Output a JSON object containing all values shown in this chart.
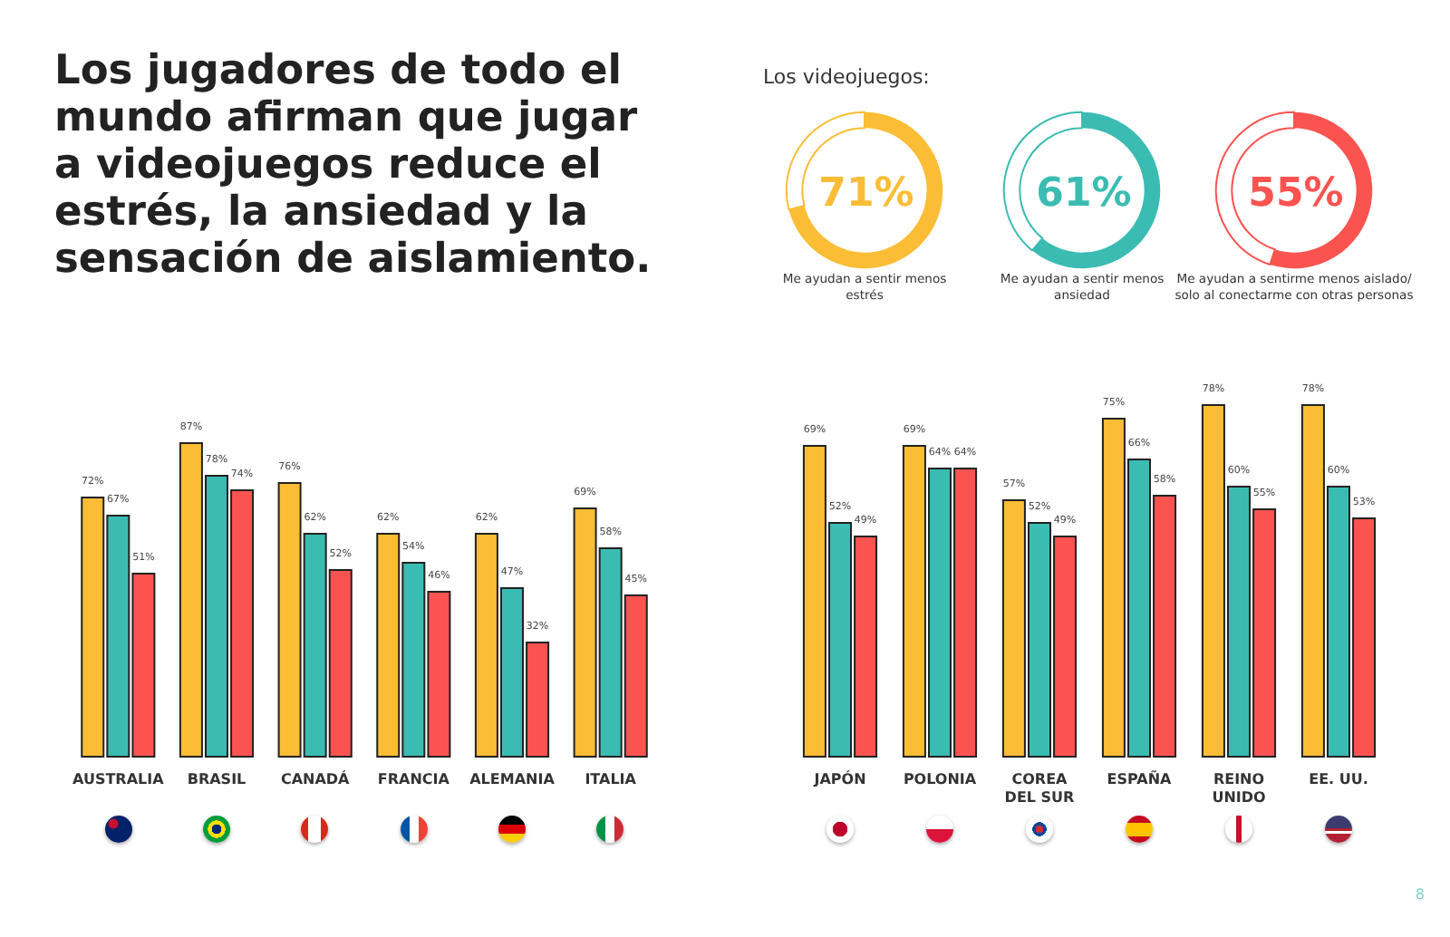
{
  "chart_data": [
    {
      "type": "donut",
      "title": "Los jugadores de todo el mundo afirman que jugar a videojuegos reduce el estrés, la ansiedad y la sensación de aislamiento.",
      "subtitle": "Los videojuegos:",
      "categories": [
        "Me ayudan a sentir menos estrés",
        null
      ],
      "values": [
        71,
        29
      ],
      "colors": [
        "#fbbd35",
        "#ffffff"
      ],
      "value_labels": [
        "71%",
        null
      ]
    },
    {
      "type": "donut",
      "categories": [
        "Me ayudan a sentir menos ansiedad",
        null
      ],
      "values": [
        61,
        39
      ],
      "colors": [
        "#3bbcb2",
        "#ffffff"
      ],
      "value_labels": [
        "61%",
        null
      ]
    },
    {
      "type": "donut",
      "categories": [
        "Me ayudan a sentirme menos aislado/ solo al conectarme con otras personas",
        null
      ],
      "values": [
        55,
        45
      ],
      "colors": [
        "#fa5350",
        "#ffffff"
      ],
      "value_labels": [
        "55%",
        null
      ]
    },
    {
      "type": "bar",
      "categories": [
        "AUSTRALIA",
        "BRASIL",
        "CANADÁ",
        "FRANCIA",
        "ALEMANIA",
        "ITALIA"
      ],
      "series": [
        {
          "color": "#fbbd35",
          "values": [
            72,
            87,
            76,
            62,
            62,
            69
          ],
          "value_labels": [
            "72%",
            "87%",
            "76%",
            "62%",
            "62%",
            "69%"
          ]
        },
        {
          "color": "#3bbcb2",
          "values": [
            67,
            78,
            62,
            54,
            47,
            58
          ],
          "value_labels": [
            "67%",
            "78%",
            "62%",
            "54%",
            "47%",
            "58%"
          ]
        },
        {
          "color": "#fa5350",
          "values": [
            51,
            74,
            52,
            46,
            32,
            45
          ],
          "value_labels": [
            "51%",
            "74%",
            "52%",
            "46%",
            "32%",
            "45%"
          ]
        }
      ]
    },
    {
      "type": "bar",
      "categories": [
        "JAPÓN",
        "POLONIA",
        "COREA\nDEL SUR",
        "ESPAÑA",
        "REINO\nUNIDO",
        "EE. UU."
      ],
      "annotations": [
        "8"
      ],
      "series": [
        {
          "color": "#fbbd35",
          "values": [
            69,
            69,
            57,
            75,
            78,
            78
          ],
          "value_labels": [
            "69%",
            "69%",
            "57%",
            "75%",
            "78%",
            "78%"
          ]
        },
        {
          "color": "#3bbcb2",
          "values": [
            52,
            64,
            52,
            66,
            60,
            60
          ],
          "value_labels": [
            "52%",
            "64%",
            "52%",
            "66%",
            "60%",
            "60%"
          ]
        },
        {
          "color": "#fa5350",
          "values": [
            49,
            64,
            49,
            58,
            55,
            53
          ],
          "value_labels": [
            "49%",
            "64%",
            "49%",
            "58%",
            "55%",
            "53%"
          ]
        }
      ]
    }
  ]
}
